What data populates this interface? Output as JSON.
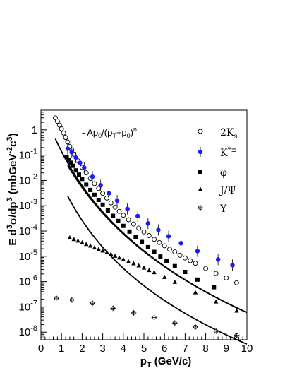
{
  "chart_data": {
    "type": "scatter",
    "x_scale": "linear",
    "y_scale": "log",
    "xlim": [
      0,
      10
    ],
    "ylim": [
      5e-09,
      6
    ],
    "xticks": [
      "0",
      "1",
      "2",
      "3",
      "4",
      "5",
      "6",
      "7",
      "8",
      "9",
      "10"
    ],
    "yticks": [
      {
        "value": 1,
        "base": "",
        "exp": "1"
      },
      {
        "value": 0.1,
        "base": "10",
        "exp": "-1"
      },
      {
        "value": 0.01,
        "base": "10",
        "exp": "-2"
      },
      {
        "value": 0.001,
        "base": "10",
        "exp": "-3"
      },
      {
        "value": 0.0001,
        "base": "10",
        "exp": "-4"
      },
      {
        "value": 1e-05,
        "base": "10",
        "exp": "-5"
      },
      {
        "value": 1e-06,
        "base": "10",
        "exp": "-6"
      },
      {
        "value": 1e-07,
        "base": "10",
        "exp": "-7"
      },
      {
        "value": 1e-08,
        "base": "10",
        "exp": "-8"
      }
    ],
    "xlabel": "p_T (GeV/c)",
    "ylabel": "E d^3σ/dp^3 (mbGeV^-2c^3)",
    "fit_label": "- Ap₀/(p_T+p₀)ⁿ",
    "fit_curves": [
      {
        "A": 1.27,
        "p0": 1.8,
        "n": 10.2,
        "from": 0.7,
        "to": 10
      },
      {
        "A": 0.8,
        "p0": 1.9,
        "n": 10.2,
        "from": 1.3,
        "to": 10
      },
      {
        "A": 0.18,
        "p0": 1.2,
        "n": 9.0,
        "from": 1.3,
        "to": 10
      }
    ],
    "series": [
      {
        "name": "2K_s",
        "marker": "open-circle",
        "color": "#000000",
        "x": [
          0.7,
          0.8,
          0.9,
          1.0,
          1.1,
          1.2,
          1.3,
          1.4,
          1.5,
          1.6,
          1.8,
          2.0,
          2.2,
          2.4,
          2.6,
          2.8,
          3.0,
          3.2,
          3.4,
          3.6,
          3.8,
          4.0,
          4.25,
          4.5,
          4.75,
          5.0,
          5.25,
          5.5,
          5.75,
          6.0,
          6.25,
          6.5,
          6.75,
          7.0,
          7.25,
          7.5,
          8.0,
          8.5,
          9.0,
          9.5
        ],
        "y": [
          3.0,
          2.2,
          1.55,
          1.1,
          0.75,
          0.5,
          0.33,
          0.22,
          0.16,
          0.11,
          0.06,
          0.033,
          0.02,
          0.012,
          0.0075,
          0.0048,
          0.0031,
          0.002,
          0.0013,
          0.00088,
          0.0006,
          0.00042,
          0.00028,
          0.00019,
          0.00013,
          9.2e-05,
          6.6e-05,
          4.7e-05,
          3.5e-05,
          2.6e-05,
          1.9e-05,
          1.5e-05,
          1.1e-05,
          8.6e-06,
          6.7e-06,
          5.3e-06,
          3.3e-06,
          2.1e-06,
          1.4e-06,
          9e-07
        ]
      },
      {
        "name": "K*±",
        "marker": "filled-circle",
        "color": "#1a1aff",
        "x": [
          1.3,
          1.5,
          1.7,
          1.9,
          2.1,
          2.5,
          2.9,
          3.3,
          3.7,
          4.2,
          4.7,
          5.2,
          5.7,
          6.2,
          6.8,
          7.6,
          8.6,
          9.3
        ],
        "y": [
          0.18,
          0.13,
          0.08,
          0.05,
          0.032,
          0.014,
          0.0064,
          0.0031,
          0.0016,
          0.00075,
          0.00039,
          0.0002,
          0.00011,
          6.2e-05,
          3.3e-05,
          1.6e-05,
          7.5e-06,
          4.5e-06
        ]
      },
      {
        "name": "φ",
        "marker": "filled-square",
        "color": "#000000",
        "x": [
          1.25,
          1.35,
          1.45,
          1.55,
          1.7,
          1.85,
          2.0,
          2.2,
          2.4,
          2.6,
          2.8,
          3.0,
          3.25,
          3.5,
          3.75,
          4.0,
          4.3,
          4.6,
          4.9,
          5.2,
          5.5,
          5.8,
          6.1,
          6.5,
          7.0,
          7.6,
          8.4
        ],
        "y": [
          0.085,
          0.065,
          0.05,
          0.038,
          0.025,
          0.017,
          0.0115,
          0.0068,
          0.0042,
          0.0027,
          0.0017,
          0.0011,
          0.00065,
          0.0004,
          0.00025,
          0.00016,
          9.5e-05,
          5.8e-05,
          3.7e-05,
          2.3e-05,
          1.5e-05,
          9.8e-06,
          6.6e-06,
          4.1e-06,
          2.4e-06,
          1.2e-06,
          6e-07
        ]
      },
      {
        "name": "J/Ψ",
        "marker": "filled-triangle",
        "color": "#000000",
        "x": [
          1.4,
          1.6,
          1.8,
          2.0,
          2.2,
          2.4,
          2.6,
          2.8,
          3.0,
          3.2,
          3.4,
          3.6,
          3.8,
          4.0,
          4.25,
          4.5,
          4.75,
          5.0,
          5.25,
          5.5,
          6.0,
          6.5,
          7.5,
          8.5,
          9.5
        ],
        "y": [
          5.5e-05,
          4.7e-05,
          4.1e-05,
          3.5e-05,
          3e-05,
          2.6e-05,
          2.2e-05,
          1.9e-05,
          1.65e-05,
          1.42e-05,
          1.22e-05,
          1.03e-05,
          8.8e-06,
          7.5e-06,
          6.2e-06,
          5.2e-06,
          4.3e-06,
          3.5e-06,
          2.8e-06,
          2.3e-06,
          1.5e-06,
          9.5e-07,
          3.7e-07,
          1.6e-07,
          7e-08
        ]
      },
      {
        "name": "Υ",
        "marker": "open-cross",
        "color": "#000000",
        "x": [
          0.75,
          1.5,
          2.5,
          3.5,
          4.5,
          5.5,
          6.5,
          7.5,
          8.5,
          9.5
        ],
        "y": [
          2.2e-07,
          1.9e-07,
          1.4e-07,
          8.8e-08,
          5.8e-08,
          3.8e-08,
          2.3e-08,
          1.6e-08,
          1.1e-08,
          7.5e-09
        ]
      }
    ]
  }
}
